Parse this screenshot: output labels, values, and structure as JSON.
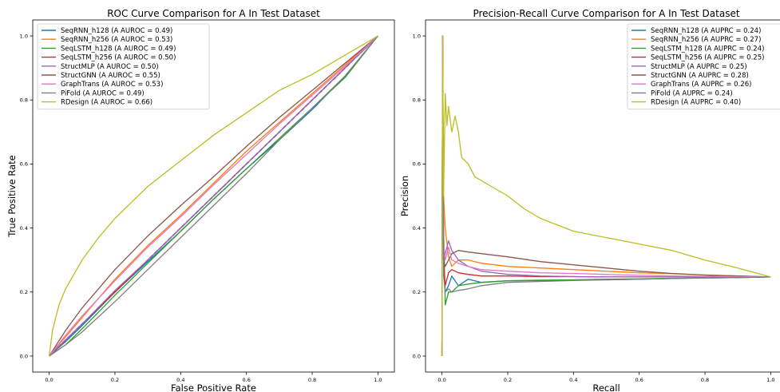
{
  "chart_data": [
    {
      "type": "line",
      "title": "ROC Curve Comparison for A In Test Dataset",
      "xlabel": "False Positive Rate",
      "ylabel": "True Positive Rate",
      "xlim": [
        -0.05,
        1.05
      ],
      "ylim": [
        -0.05,
        1.05
      ],
      "xticks": [
        0.0,
        0.2,
        0.4,
        0.6,
        0.8,
        1.0
      ],
      "yticks": [
        0.0,
        0.2,
        0.4,
        0.6,
        0.8,
        1.0
      ],
      "tick_labels": [
        "0.0",
        "0.2",
        "0.4",
        "0.6",
        "0.8",
        "1.0"
      ],
      "legend_position": "upper left",
      "grid": false,
      "baseline": {
        "style": "dashed",
        "color": "#1a1a4a",
        "x": [
          0,
          1
        ],
        "y": [
          0,
          1
        ]
      },
      "series": [
        {
          "name": "SeqRNN_h128 (A AUROC = 0.49)",
          "color": "#1f77b4",
          "x": [
            0,
            0.05,
            0.1,
            0.2,
            0.3,
            0.4,
            0.5,
            0.6,
            0.7,
            0.8,
            0.9,
            1.0
          ],
          "y": [
            0,
            0.045,
            0.095,
            0.2,
            0.295,
            0.39,
            0.49,
            0.585,
            0.675,
            0.77,
            0.875,
            1.0
          ]
        },
        {
          "name": "SeqRNN_h256 (A AUROC = 0.53)",
          "color": "#ff7f0e",
          "x": [
            0,
            0.05,
            0.1,
            0.2,
            0.3,
            0.4,
            0.5,
            0.6,
            0.7,
            0.8,
            0.9,
            1.0
          ],
          "y": [
            0,
            0.06,
            0.12,
            0.24,
            0.345,
            0.44,
            0.54,
            0.64,
            0.73,
            0.82,
            0.91,
            1.0
          ]
        },
        {
          "name": "SeqLSTM_h128 (A AUROC = 0.49)",
          "color": "#2ca02c",
          "x": [
            0,
            0.05,
            0.1,
            0.2,
            0.3,
            0.4,
            0.5,
            0.6,
            0.7,
            0.8,
            0.9,
            1.0
          ],
          "y": [
            0,
            0.035,
            0.085,
            0.19,
            0.29,
            0.39,
            0.49,
            0.585,
            0.68,
            0.775,
            0.87,
            1.0
          ]
        },
        {
          "name": "SeqLSTM_h256 (A AUROC = 0.50)",
          "color": "#d62728",
          "x": [
            0,
            0.05,
            0.1,
            0.2,
            0.3,
            0.4,
            0.5,
            0.6,
            0.7,
            0.8,
            0.9,
            1.0
          ],
          "y": [
            0,
            0.05,
            0.1,
            0.2,
            0.3,
            0.4,
            0.5,
            0.6,
            0.7,
            0.8,
            0.9,
            1.0
          ]
        },
        {
          "name": "StructMLP (A AUROC = 0.50)",
          "color": "#9467bd",
          "x": [
            0,
            0.05,
            0.1,
            0.2,
            0.3,
            0.4,
            0.5,
            0.6,
            0.7,
            0.8,
            0.9,
            1.0
          ],
          "y": [
            0,
            0.05,
            0.1,
            0.205,
            0.3,
            0.4,
            0.5,
            0.6,
            0.7,
            0.8,
            0.9,
            1.0
          ]
        },
        {
          "name": "StructGNN (A AUROC = 0.55)",
          "color": "#8c564b",
          "x": [
            0,
            0.05,
            0.1,
            0.2,
            0.3,
            0.4,
            0.5,
            0.6,
            0.7,
            0.8,
            0.9,
            1.0
          ],
          "y": [
            0,
            0.08,
            0.15,
            0.27,
            0.375,
            0.47,
            0.56,
            0.655,
            0.745,
            0.83,
            0.915,
            1.0
          ]
        },
        {
          "name": "GraphTrans (A AUROC = 0.53)",
          "color": "#e377c2",
          "x": [
            0,
            0.05,
            0.1,
            0.2,
            0.3,
            0.4,
            0.5,
            0.6,
            0.7,
            0.8,
            0.9,
            1.0
          ],
          "y": [
            0,
            0.065,
            0.125,
            0.235,
            0.34,
            0.435,
            0.535,
            0.63,
            0.725,
            0.815,
            0.905,
            1.0
          ]
        },
        {
          "name": "PiFold (A AUROC = 0.49)",
          "color": "#7f7f7f",
          "x": [
            0,
            0.05,
            0.1,
            0.2,
            0.3,
            0.4,
            0.5,
            0.6,
            0.7,
            0.8,
            0.9,
            1.0
          ],
          "y": [
            0,
            0.035,
            0.075,
            0.17,
            0.27,
            0.37,
            0.47,
            0.57,
            0.675,
            0.775,
            0.875,
            1.0
          ]
        },
        {
          "name": "RDesign (A AUROC = 0.66)",
          "color": "#bcbd22",
          "x": [
            0,
            0.01,
            0.03,
            0.05,
            0.1,
            0.15,
            0.2,
            0.3,
            0.4,
            0.5,
            0.6,
            0.7,
            0.8,
            0.9,
            1.0
          ],
          "y": [
            0,
            0.08,
            0.16,
            0.21,
            0.3,
            0.37,
            0.43,
            0.53,
            0.61,
            0.69,
            0.76,
            0.83,
            0.88,
            0.94,
            1.0
          ]
        }
      ]
    },
    {
      "type": "line",
      "title": "Precision-Recall Curve Comparison for A In Test Dataset",
      "xlabel": "Recall",
      "ylabel": "Precision",
      "xlim": [
        -0.05,
        1.05
      ],
      "ylim": [
        -0.05,
        1.05
      ],
      "xticks": [
        0.0,
        0.2,
        0.4,
        0.6,
        0.8,
        1.0
      ],
      "yticks": [
        0.0,
        0.2,
        0.4,
        0.6,
        0.8,
        1.0
      ],
      "tick_labels": [
        "0.0",
        "0.2",
        "0.4",
        "0.6",
        "0.8",
        "1.0"
      ],
      "legend_position": "upper right",
      "grid": false,
      "series": [
        {
          "name": "SeqRNN_h128 (A AUPRC = 0.24)",
          "color": "#1f77b4",
          "x": [
            0,
            0.002,
            0.005,
            0.01,
            0.02,
            0.03,
            0.05,
            0.08,
            0.12,
            0.2,
            0.3,
            0.4,
            0.5,
            0.6,
            0.7,
            0.8,
            0.9,
            1.0
          ],
          "y": [
            0,
            1.0,
            0.3,
            0.2,
            0.22,
            0.25,
            0.22,
            0.24,
            0.23,
            0.235,
            0.236,
            0.237,
            0.238,
            0.24,
            0.242,
            0.244,
            0.245,
            0.247
          ]
        },
        {
          "name": "SeqRNN_h256 (A AUPRC = 0.27)",
          "color": "#ff7f0e",
          "x": [
            0,
            0.002,
            0.005,
            0.01,
            0.02,
            0.03,
            0.05,
            0.08,
            0.12,
            0.2,
            0.3,
            0.4,
            0.5,
            0.6,
            0.7,
            0.8,
            0.9,
            1.0
          ],
          "y": [
            0,
            1.0,
            0.5,
            0.4,
            0.31,
            0.28,
            0.3,
            0.3,
            0.29,
            0.28,
            0.275,
            0.27,
            0.265,
            0.26,
            0.257,
            0.253,
            0.25,
            0.247
          ]
        },
        {
          "name": "SeqLSTM_h128 (A AUPRC = 0.24)",
          "color": "#2ca02c",
          "x": [
            0,
            0.002,
            0.005,
            0.01,
            0.02,
            0.03,
            0.05,
            0.08,
            0.12,
            0.2,
            0.3,
            0.4,
            0.5,
            0.6,
            0.7,
            0.8,
            0.9,
            1.0
          ],
          "y": [
            0,
            1.0,
            0.4,
            0.16,
            0.2,
            0.2,
            0.22,
            0.225,
            0.23,
            0.235,
            0.237,
            0.238,
            0.24,
            0.241,
            0.243,
            0.244,
            0.245,
            0.247
          ]
        },
        {
          "name": "SeqLSTM_h256 (A AUPRC = 0.25)",
          "color": "#d62728",
          "x": [
            0,
            0.002,
            0.005,
            0.01,
            0.02,
            0.03,
            0.05,
            0.08,
            0.12,
            0.2,
            0.3,
            0.4,
            0.5,
            0.6,
            0.7,
            0.8,
            0.9,
            1.0
          ],
          "y": [
            0,
            1.0,
            0.3,
            0.22,
            0.26,
            0.27,
            0.26,
            0.255,
            0.25,
            0.25,
            0.248,
            0.248,
            0.247,
            0.247,
            0.247,
            0.247,
            0.247,
            0.247
          ]
        },
        {
          "name": "StructMLP (A AUPRC = 0.25)",
          "color": "#9467bd",
          "x": [
            0,
            0.002,
            0.005,
            0.01,
            0.02,
            0.03,
            0.05,
            0.08,
            0.12,
            0.2,
            0.3,
            0.4,
            0.5,
            0.6,
            0.7,
            0.8,
            0.9,
            1.0
          ],
          "y": [
            0,
            1.0,
            0.3,
            0.32,
            0.36,
            0.33,
            0.3,
            0.28,
            0.265,
            0.255,
            0.25,
            0.248,
            0.247,
            0.247,
            0.247,
            0.247,
            0.247,
            0.247
          ]
        },
        {
          "name": "StructGNN (A AUPRC = 0.28)",
          "color": "#8c564b",
          "x": [
            0,
            0.002,
            0.005,
            0.01,
            0.02,
            0.03,
            0.05,
            0.08,
            0.12,
            0.2,
            0.3,
            0.4,
            0.5,
            0.6,
            0.7,
            0.8,
            0.9,
            1.0
          ],
          "y": [
            0,
            1.0,
            0.3,
            0.28,
            0.3,
            0.32,
            0.33,
            0.325,
            0.32,
            0.31,
            0.295,
            0.285,
            0.275,
            0.265,
            0.258,
            0.253,
            0.25,
            0.247
          ]
        },
        {
          "name": "GraphTrans (A AUPRC = 0.26)",
          "color": "#e377c2",
          "x": [
            0,
            0.002,
            0.005,
            0.01,
            0.02,
            0.03,
            0.05,
            0.08,
            0.12,
            0.2,
            0.3,
            0.4,
            0.5,
            0.6,
            0.7,
            0.8,
            0.9,
            1.0
          ],
          "y": [
            0,
            1.0,
            0.35,
            0.3,
            0.34,
            0.3,
            0.29,
            0.28,
            0.27,
            0.265,
            0.26,
            0.258,
            0.255,
            0.252,
            0.25,
            0.249,
            0.248,
            0.247
          ]
        },
        {
          "name": "PiFold (A AUPRC = 0.24)",
          "color": "#7f7f7f",
          "x": [
            0,
            0.002,
            0.005,
            0.01,
            0.02,
            0.03,
            0.05,
            0.08,
            0.12,
            0.2,
            0.3,
            0.4,
            0.5,
            0.6,
            0.7,
            0.8,
            0.9,
            1.0
          ],
          "y": [
            0,
            1.0,
            0.25,
            0.2,
            0.21,
            0.2,
            0.205,
            0.21,
            0.22,
            0.23,
            0.233,
            0.236,
            0.238,
            0.24,
            0.242,
            0.244,
            0.245,
            0.247
          ]
        },
        {
          "name": "RDesign (A AUPRC = 0.40)",
          "color": "#bcbd22",
          "x": [
            0,
            0.002,
            0.005,
            0.01,
            0.015,
            0.02,
            0.03,
            0.04,
            0.05,
            0.06,
            0.08,
            0.1,
            0.15,
            0.2,
            0.25,
            0.3,
            0.4,
            0.5,
            0.6,
            0.7,
            0.8,
            0.9,
            1.0
          ],
          "y": [
            0,
            1.0,
            0.5,
            0.82,
            0.72,
            0.78,
            0.7,
            0.75,
            0.7,
            0.62,
            0.6,
            0.56,
            0.53,
            0.5,
            0.46,
            0.43,
            0.39,
            0.37,
            0.35,
            0.33,
            0.3,
            0.275,
            0.247
          ]
        }
      ]
    }
  ]
}
